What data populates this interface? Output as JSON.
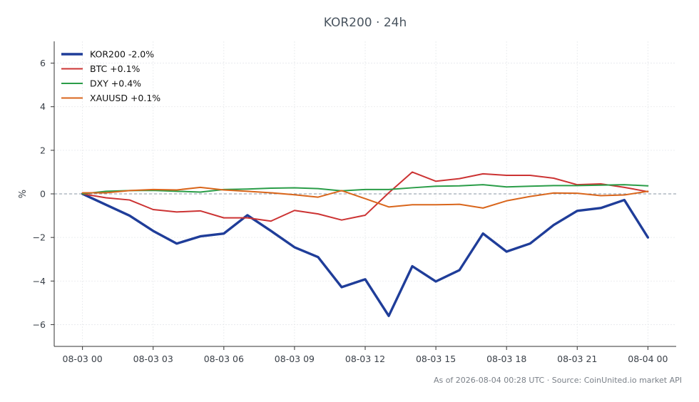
{
  "chart_data": {
    "type": "line",
    "title": "KOR200 · 24h",
    "ylabel": "%",
    "xlabel": "",
    "ylim": [
      -7,
      7
    ],
    "xlim": [
      -1.2,
      25.2
    ],
    "yticks": [
      -6,
      -4,
      -2,
      0,
      2,
      4,
      6
    ],
    "ytick_labels": [
      "−6",
      "−4",
      "−2",
      "0",
      "2",
      "4",
      "6"
    ],
    "xticks": [
      0,
      3,
      6,
      9,
      12,
      15,
      18,
      21,
      24
    ],
    "xtick_labels": [
      "08-03 00",
      "08-03 03",
      "08-03 06",
      "08-03 09",
      "08-03 12",
      "08-03 15",
      "08-03 18",
      "08-03 21",
      "08-04 00"
    ],
    "grid": true,
    "legend_position": "top-left",
    "zero_line": true,
    "x": [
      0,
      1,
      2,
      3,
      4,
      5,
      6,
      7,
      8,
      9,
      10,
      11,
      12,
      13,
      14,
      15,
      16,
      17,
      18,
      19,
      20,
      21,
      22,
      23,
      24
    ],
    "series": [
      {
        "name": "KOR200 -2.0%",
        "color": "#1f3d99",
        "values": [
          0.0,
          -0.5,
          -1.0,
          -1.7,
          -2.28,
          -1.95,
          -1.82,
          -0.98,
          -1.7,
          -2.45,
          -2.9,
          -4.28,
          -3.92,
          -5.6,
          -3.32,
          -4.02,
          -3.5,
          -1.82,
          -2.65,
          -2.28,
          -1.43,
          -0.78,
          -0.65,
          -0.28,
          -2.0
        ]
      },
      {
        "name": "BTC +0.1%",
        "color": "#cc3333",
        "values": [
          0.0,
          -0.18,
          -0.28,
          -0.72,
          -0.83,
          -0.78,
          -1.1,
          -1.1,
          -1.25,
          -0.76,
          -0.92,
          -1.2,
          -0.98,
          0.05,
          1.0,
          0.58,
          0.7,
          0.92,
          0.85,
          0.85,
          0.72,
          0.42,
          0.46,
          0.3,
          0.1
        ]
      },
      {
        "name": "DXY +0.4%",
        "color": "#2a9d48",
        "values": [
          0.0,
          0.12,
          0.15,
          0.16,
          0.12,
          0.08,
          0.2,
          0.22,
          0.26,
          0.28,
          0.24,
          0.14,
          0.2,
          0.2,
          0.28,
          0.35,
          0.37,
          0.42,
          0.32,
          0.35,
          0.38,
          0.38,
          0.4,
          0.42,
          0.37
        ]
      },
      {
        "name": "XAUUSD +0.1%",
        "color": "#d9661c",
        "values": [
          0.05,
          0.05,
          0.15,
          0.2,
          0.18,
          0.3,
          0.18,
          0.12,
          0.05,
          -0.04,
          -0.15,
          0.15,
          -0.22,
          -0.6,
          -0.5,
          -0.5,
          -0.48,
          -0.65,
          -0.32,
          -0.12,
          0.04,
          0.03,
          -0.08,
          -0.05,
          0.12
        ]
      }
    ]
  },
  "footer": "As of 2026-08-04 00:28 UTC · Source: CoinUnited.io market API"
}
